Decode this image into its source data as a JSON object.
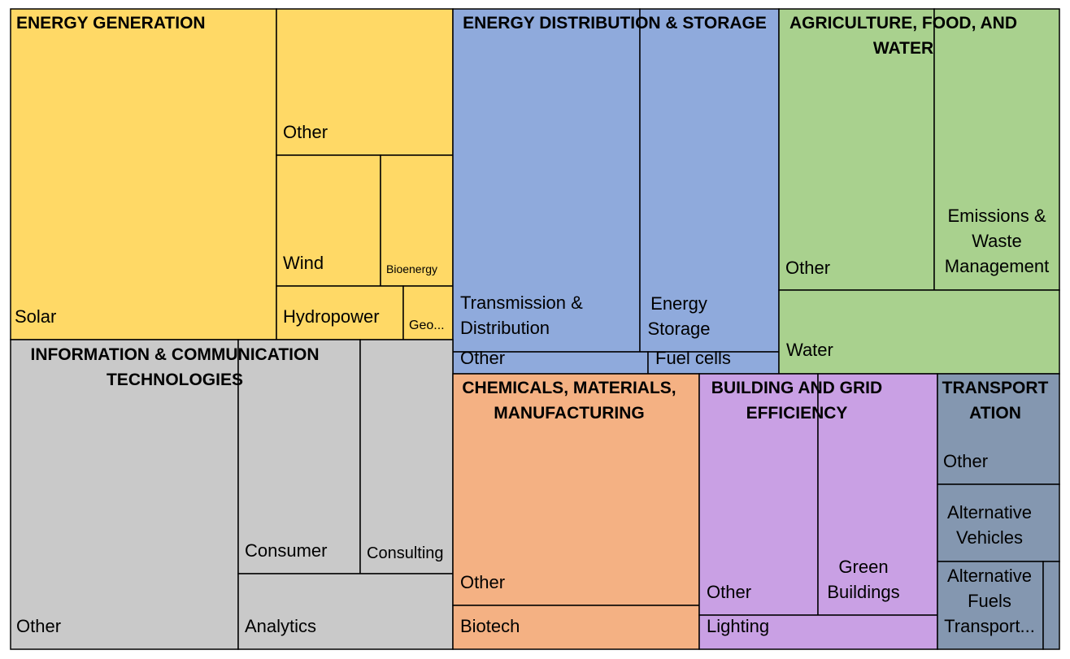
{
  "chart_data": {
    "type": "treemap",
    "colors": {
      "energy_generation": "#FFD966",
      "energy_distribution_storage": "#8FAADC",
      "agriculture_food_water": "#A9D18E",
      "ict": "#C9C9C9",
      "chemicals_materials_manufacturing": "#F4B183",
      "building_grid_efficiency": "#C9A0E4",
      "transportation": "#8497B0"
    },
    "sectors": [
      {
        "id": "energy_generation",
        "title": [
          "ENERGY GENERATION"
        ],
        "children": [
          {
            "label": [
              "Solar"
            ]
          },
          {
            "label": [
              "Other"
            ]
          },
          {
            "label": [
              "Wind"
            ]
          },
          {
            "label": [
              "Bioenergy"
            ]
          },
          {
            "label": [
              "Hydropower"
            ]
          },
          {
            "label": [
              "Geo..."
            ]
          }
        ]
      },
      {
        "id": "energy_distribution_storage",
        "title": [
          "ENERGY DISTRIBUTION & STORAGE"
        ],
        "children": [
          {
            "label": [
              "Transmission &",
              "Distribution"
            ]
          },
          {
            "label": [
              "Energy",
              "Storage"
            ]
          },
          {
            "label": [
              "Other"
            ]
          },
          {
            "label": [
              "Fuel cells"
            ]
          }
        ]
      },
      {
        "id": "agriculture_food_water",
        "title": [
          "AGRICULTURE, FOOD, AND",
          "WATER"
        ],
        "children": [
          {
            "label": [
              "Other"
            ]
          },
          {
            "label": [
              "Emissions &",
              "Waste",
              "Management"
            ]
          },
          {
            "label": [
              "Water"
            ]
          }
        ]
      },
      {
        "id": "ict",
        "title": [
          "INFORMATION & COMMUNICATION",
          "TECHNOLOGIES"
        ],
        "children": [
          {
            "label": [
              "Other"
            ]
          },
          {
            "label": [
              "Consumer"
            ]
          },
          {
            "label": [
              "Consulting"
            ]
          },
          {
            "label": [
              "Analytics"
            ]
          }
        ]
      },
      {
        "id": "chemicals_materials_manufacturing",
        "title": [
          "CHEMICALS, MATERIALS,",
          "MANUFACTURING"
        ],
        "children": [
          {
            "label": [
              "Other"
            ]
          },
          {
            "label": [
              "Biotech"
            ]
          }
        ]
      },
      {
        "id": "building_grid_efficiency",
        "title": [
          "BUILDING AND GRID",
          "EFFICIENCY"
        ],
        "children": [
          {
            "label": [
              "Other"
            ]
          },
          {
            "label": [
              "Green",
              "Buildings"
            ]
          },
          {
            "label": [
              "Lighting"
            ]
          }
        ]
      },
      {
        "id": "transportation",
        "title": [
          "TRANSPORT",
          "ATION"
        ],
        "children": [
          {
            "label": [
              "Other"
            ]
          },
          {
            "label": [
              "Alternative",
              "Vehicles"
            ]
          },
          {
            "label": [
              "Alternative",
              "Fuels",
              "Transport..."
            ]
          },
          {
            "label": [
              ""
            ]
          }
        ]
      }
    ]
  }
}
